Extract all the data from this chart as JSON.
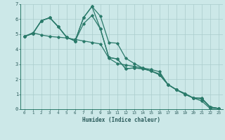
{
  "xlabel": "Humidex (Indice chaleur)",
  "xlim": [
    -0.5,
    23.5
  ],
  "ylim": [
    0,
    7
  ],
  "xticks": [
    0,
    1,
    2,
    3,
    4,
    5,
    6,
    7,
    8,
    9,
    10,
    11,
    12,
    13,
    14,
    15,
    16,
    17,
    18,
    19,
    20,
    21,
    22,
    23
  ],
  "yticks": [
    0,
    1,
    2,
    3,
    4,
    5,
    6,
    7
  ],
  "background_color": "#cce8e8",
  "grid_color": "#aacccc",
  "line_color": "#2a7a6a",
  "lines": [
    [
      4.85,
      5.1,
      4.95,
      4.85,
      4.8,
      4.75,
      4.65,
      4.55,
      4.45,
      4.35,
      3.4,
      3.05,
      2.95,
      2.85,
      2.75,
      2.55,
      2.35,
      1.65,
      1.3,
      1.05,
      0.75,
      0.55,
      0.05,
      0.05
    ],
    [
      4.85,
      5.05,
      5.9,
      6.1,
      5.5,
      4.8,
      4.55,
      6.1,
      6.85,
      6.2,
      4.45,
      4.4,
      3.4,
      3.05,
      2.75,
      2.65,
      2.5,
      1.65,
      1.3,
      1.05,
      0.75,
      0.75,
      0.15,
      0.05
    ],
    [
      4.85,
      5.05,
      5.9,
      6.1,
      5.5,
      4.8,
      4.55,
      6.1,
      6.85,
      5.35,
      3.45,
      3.35,
      2.7,
      2.75,
      2.7,
      2.55,
      2.3,
      1.65,
      1.3,
      1.0,
      0.75,
      0.7,
      0.15,
      0.05
    ],
    [
      4.85,
      5.05,
      5.9,
      6.1,
      5.5,
      4.8,
      4.55,
      5.7,
      6.25,
      5.35,
      3.45,
      3.35,
      2.7,
      2.75,
      2.7,
      2.55,
      2.3,
      1.65,
      1.3,
      1.0,
      0.75,
      0.7,
      0.15,
      0.05
    ]
  ]
}
